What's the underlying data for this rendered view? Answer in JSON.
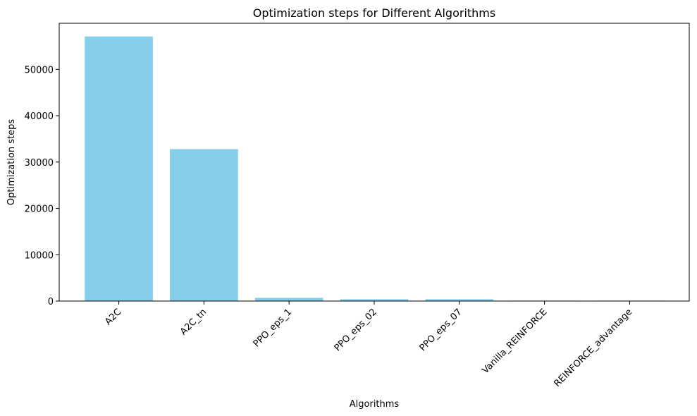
{
  "chart_data": {
    "type": "bar",
    "title": "Optimization steps for Different Algorithms",
    "xlabel": "Algorithms",
    "ylabel": "Optimization steps",
    "categories": [
      "A2C",
      "A2C_tn",
      "PPO_eps_1",
      "PPO_eps_02",
      "PPO_eps_07",
      "Vanilla_REINFORCE",
      "REINFORCE_advantage"
    ],
    "values": [
      57100,
      32800,
      700,
      400,
      400,
      100,
      100
    ],
    "yticks": [
      0,
      10000,
      20000,
      30000,
      40000,
      50000
    ],
    "ylim": [
      0,
      59950
    ],
    "bar_color": "#87ceeb",
    "grid": false,
    "legend": "none"
  }
}
